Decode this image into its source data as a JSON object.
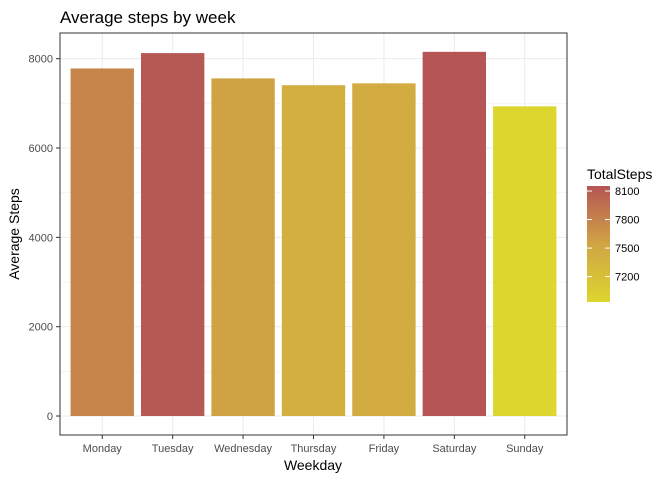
{
  "chart_data": {
    "type": "bar",
    "title": "Average steps by week",
    "xlabel": "Weekday",
    "ylabel": "Average Steps",
    "categories": [
      "Monday",
      "Tuesday",
      "Wednesday",
      "Thursday",
      "Friday",
      "Saturday",
      "Sunday"
    ],
    "values": [
      7781,
      8125,
      7559,
      7406,
      7448,
      8153,
      6933
    ],
    "ylim": [
      0,
      8500
    ],
    "yticks": [
      0,
      2000,
      4000,
      6000,
      8000
    ],
    "grid": true,
    "legend": {
      "title": "TotalSteps",
      "position": "right",
      "ticks": [
        8100,
        7800,
        7500,
        7200
      ],
      "range": [
        6933,
        8153
      ]
    },
    "colors": {
      "low": "#DCD62F",
      "mid": "#D0A444",
      "high": "#B55555"
    }
  }
}
